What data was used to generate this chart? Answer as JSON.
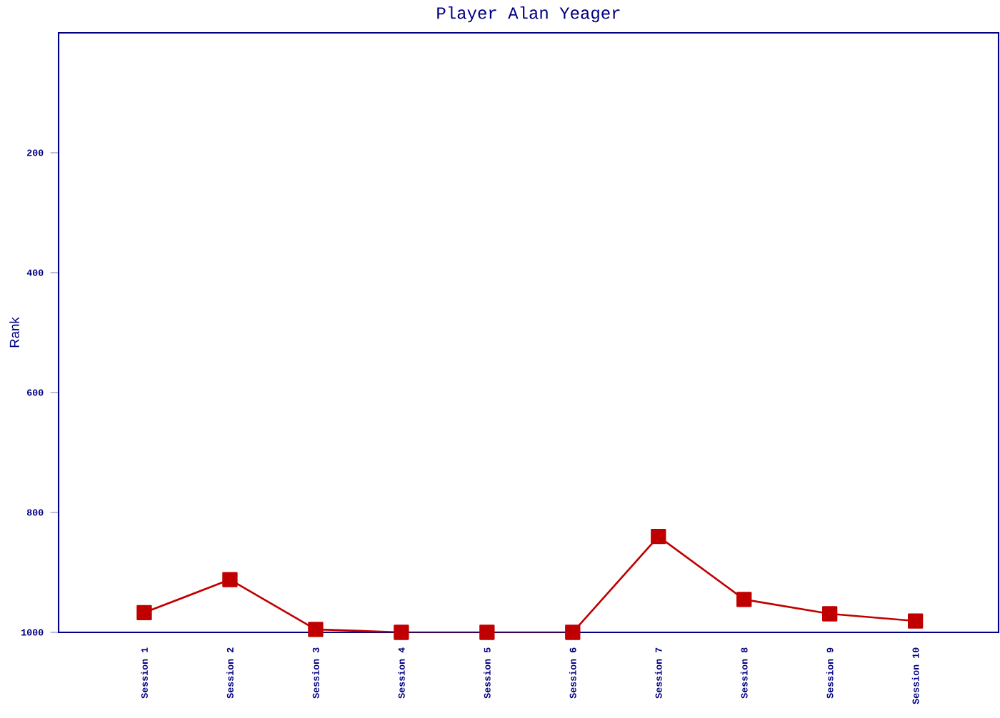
{
  "chart_data": {
    "type": "line",
    "title": "Player Alan Yeager",
    "ylabel": "Rank",
    "categories": [
      "Session 1",
      "Session 2",
      "Session 3",
      "Session 4",
      "Session 5",
      "Session 6",
      "Session 7",
      "Session 8",
      "Session 9",
      "Session 10"
    ],
    "series": [
      {
        "color": "#c00000",
        "values": [
          967,
          912,
          995,
          1000,
          1000,
          1000,
          840,
          945,
          969,
          981
        ]
      }
    ],
    "ylim": [
      1000,
      0
    ],
    "yticks": [
      200,
      400,
      600,
      800,
      1000
    ],
    "marker": "square"
  }
}
